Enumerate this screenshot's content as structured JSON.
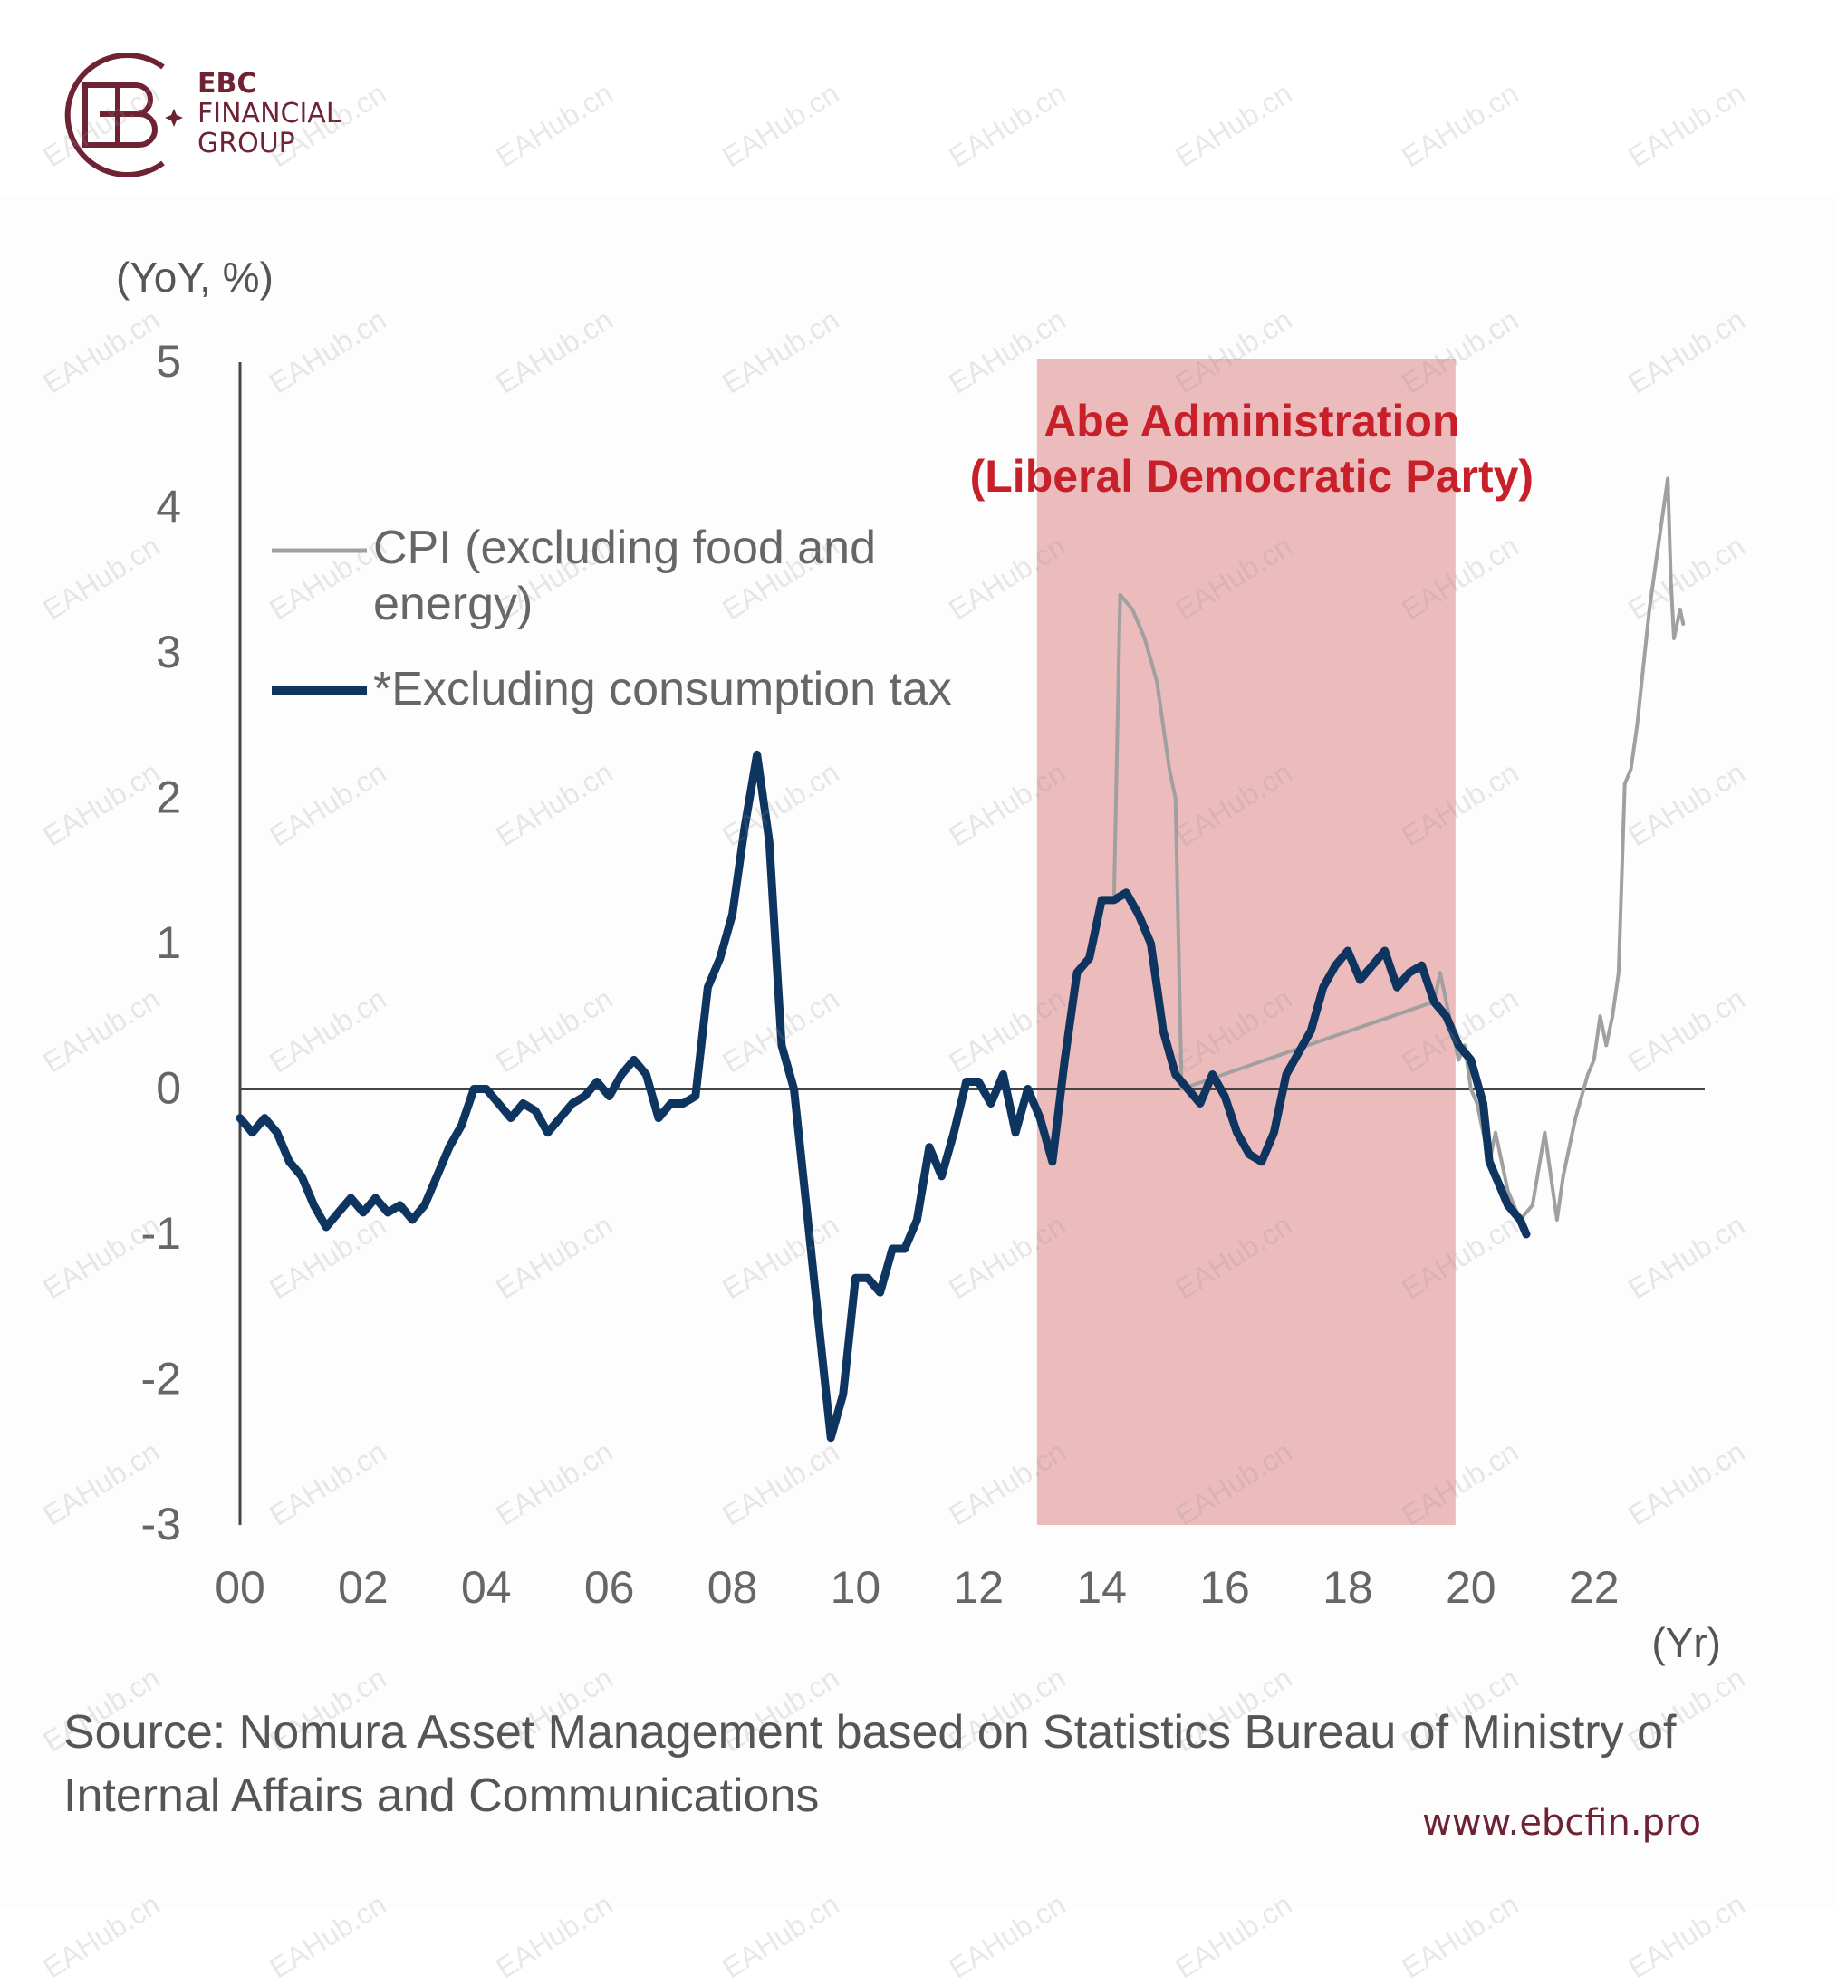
{
  "brand": {
    "name_line1": "EBC",
    "name_line2": "FINANCIAL",
    "name_line3": "GROUP",
    "color": "#6e2233",
    "url": "www.ebcfin.pro"
  },
  "watermark": "EAHub.cn",
  "source_text": "Source: Nomura Asset Management based on Statistics Bureau of Ministry of Internal Affairs and Communications",
  "chart_data": {
    "type": "line",
    "ylabel": "(YoY, %)",
    "xlabel": "(Yr)",
    "ylim": [
      -3,
      5
    ],
    "xlim": [
      2000,
      2023.8
    ],
    "yticks": [
      "5",
      "4",
      "3",
      "2",
      "1",
      "0",
      "-1",
      "-2",
      "-3"
    ],
    "yticks_values": [
      5,
      4,
      3,
      2,
      1,
      0,
      -1,
      -2,
      -3
    ],
    "xticks": [
      "00",
      "02",
      "04",
      "06",
      "08",
      "10",
      "12",
      "14",
      "16",
      "18",
      "20",
      "22"
    ],
    "xticks_values": [
      2000,
      2002,
      2004,
      2006,
      2008,
      2010,
      2012,
      2014,
      2016,
      2018,
      2020,
      2022
    ],
    "shaded_region": {
      "x_start": 2012.95,
      "x_end": 2019.75,
      "label_line1": "Abe Administration",
      "label_line2": "(Liberal Democratic Party)",
      "fill_color": "#ecbbbb",
      "label_color": "#c8202a"
    },
    "legend": [
      {
        "label_line1": "CPI (excluding food and",
        "label_line2": "energy)",
        "color": "#a0a0a0"
      },
      {
        "label_line1": "*Excluding consumption tax",
        "color": "#0e3460"
      }
    ],
    "series": [
      {
        "name": "CPI (excluding food and energy)",
        "color": "#a0a0a0",
        "points": [
          [
            2014.2,
            1.3
          ],
          [
            2014.3,
            3.4
          ],
          [
            2014.5,
            3.3
          ],
          [
            2014.7,
            3.1
          ],
          [
            2014.9,
            2.8
          ],
          [
            2015.0,
            2.5
          ],
          [
            2015.1,
            2.2
          ],
          [
            2015.2,
            2.0
          ],
          [
            2015.3,
            0.0
          ],
          [
            2019.4,
            0.6
          ],
          [
            2019.5,
            0.8
          ],
          [
            2019.6,
            0.6
          ],
          [
            2019.7,
            0.4
          ],
          [
            2019.8,
            0.2
          ],
          [
            2019.9,
            0.3
          ],
          [
            2020.0,
            0.0
          ],
          [
            2020.1,
            -0.1
          ],
          [
            2020.2,
            -0.3
          ],
          [
            2020.3,
            -0.5
          ],
          [
            2020.4,
            -0.3
          ],
          [
            2020.6,
            -0.7
          ],
          [
            2020.8,
            -0.9
          ],
          [
            2021.0,
            -0.8
          ],
          [
            2021.2,
            -0.3
          ],
          [
            2021.3,
            -0.6
          ],
          [
            2021.4,
            -0.9
          ],
          [
            2021.5,
            -0.6
          ],
          [
            2021.7,
            -0.2
          ],
          [
            2021.9,
            0.1
          ],
          [
            2022.0,
            0.2
          ],
          [
            2022.1,
            0.5
          ],
          [
            2022.2,
            0.3
          ],
          [
            2022.3,
            0.5
          ],
          [
            2022.4,
            0.8
          ],
          [
            2022.5,
            2.1
          ],
          [
            2022.6,
            2.2
          ],
          [
            2022.7,
            2.5
          ],
          [
            2022.8,
            2.9
          ],
          [
            2022.9,
            3.3
          ],
          [
            2023.0,
            3.6
          ],
          [
            2023.1,
            3.9
          ],
          [
            2023.2,
            4.2
          ],
          [
            2023.25,
            3.5
          ],
          [
            2023.3,
            3.1
          ],
          [
            2023.4,
            3.3
          ],
          [
            2023.45,
            3.2
          ]
        ]
      },
      {
        "name": "*Excluding consumption tax",
        "color": "#0e3460",
        "points": [
          [
            2000.0,
            -0.2
          ],
          [
            2000.2,
            -0.3
          ],
          [
            2000.4,
            -0.2
          ],
          [
            2000.6,
            -0.3
          ],
          [
            2000.8,
            -0.5
          ],
          [
            2001.0,
            -0.6
          ],
          [
            2001.2,
            -0.8
          ],
          [
            2001.4,
            -0.95
          ],
          [
            2001.6,
            -0.85
          ],
          [
            2001.8,
            -0.75
          ],
          [
            2002.0,
            -0.85
          ],
          [
            2002.2,
            -0.75
          ],
          [
            2002.4,
            -0.85
          ],
          [
            2002.6,
            -0.8
          ],
          [
            2002.8,
            -0.9
          ],
          [
            2003.0,
            -0.8
          ],
          [
            2003.2,
            -0.6
          ],
          [
            2003.4,
            -0.4
          ],
          [
            2003.6,
            -0.25
          ],
          [
            2003.8,
            0.0
          ],
          [
            2004.0,
            0.0
          ],
          [
            2004.2,
            -0.1
          ],
          [
            2004.4,
            -0.2
          ],
          [
            2004.6,
            -0.1
          ],
          [
            2004.8,
            -0.15
          ],
          [
            2005.0,
            -0.3
          ],
          [
            2005.2,
            -0.2
          ],
          [
            2005.4,
            -0.1
          ],
          [
            2005.6,
            -0.05
          ],
          [
            2005.8,
            0.05
          ],
          [
            2006.0,
            -0.05
          ],
          [
            2006.2,
            0.1
          ],
          [
            2006.4,
            0.2
          ],
          [
            2006.6,
            0.1
          ],
          [
            2006.8,
            -0.2
          ],
          [
            2007.0,
            -0.1
          ],
          [
            2007.2,
            -0.1
          ],
          [
            2007.4,
            -0.05
          ],
          [
            2007.6,
            0.7
          ],
          [
            2007.8,
            0.9
          ],
          [
            2008.0,
            1.2
          ],
          [
            2008.2,
            1.8
          ],
          [
            2008.4,
            2.3
          ],
          [
            2008.6,
            1.7
          ],
          [
            2008.8,
            0.3
          ],
          [
            2009.0,
            0.0
          ],
          [
            2009.2,
            -0.8
          ],
          [
            2009.4,
            -1.6
          ],
          [
            2009.6,
            -2.4
          ],
          [
            2009.8,
            -2.1
          ],
          [
            2010.0,
            -1.3
          ],
          [
            2010.2,
            -1.3
          ],
          [
            2010.4,
            -1.4
          ],
          [
            2010.6,
            -1.1
          ],
          [
            2010.8,
            -1.1
          ],
          [
            2011.0,
            -0.9
          ],
          [
            2011.2,
            -0.4
          ],
          [
            2011.4,
            -0.6
          ],
          [
            2011.6,
            -0.3
          ],
          [
            2011.8,
            0.05
          ],
          [
            2012.0,
            0.05
          ],
          [
            2012.2,
            -0.1
          ],
          [
            2012.4,
            0.1
          ],
          [
            2012.6,
            -0.3
          ],
          [
            2012.8,
            0.0
          ],
          [
            2013.0,
            -0.2
          ],
          [
            2013.2,
            -0.5
          ],
          [
            2013.4,
            0.2
          ],
          [
            2013.6,
            0.8
          ],
          [
            2013.8,
            0.9
          ],
          [
            2014.0,
            1.3
          ],
          [
            2014.2,
            1.3
          ],
          [
            2014.4,
            1.35
          ],
          [
            2014.6,
            1.2
          ],
          [
            2014.8,
            1.0
          ],
          [
            2015.0,
            0.4
          ],
          [
            2015.2,
            0.1
          ],
          [
            2015.4,
            0.0
          ],
          [
            2015.6,
            -0.1
          ],
          [
            2015.8,
            0.1
          ],
          [
            2016.0,
            -0.05
          ],
          [
            2016.2,
            -0.3
          ],
          [
            2016.4,
            -0.45
          ],
          [
            2016.6,
            -0.5
          ],
          [
            2016.8,
            -0.3
          ],
          [
            2017.0,
            0.1
          ],
          [
            2017.2,
            0.25
          ],
          [
            2017.4,
            0.4
          ],
          [
            2017.6,
            0.7
          ],
          [
            2017.8,
            0.85
          ],
          [
            2018.0,
            0.95
          ],
          [
            2018.2,
            0.75
          ],
          [
            2018.4,
            0.85
          ],
          [
            2018.6,
            0.95
          ],
          [
            2018.8,
            0.7
          ],
          [
            2019.0,
            0.8
          ],
          [
            2019.2,
            0.85
          ],
          [
            2019.4,
            0.6
          ],
          [
            2019.6,
            0.5
          ],
          [
            2019.8,
            0.3
          ],
          [
            2020.0,
            0.2
          ],
          [
            2020.2,
            -0.1
          ],
          [
            2020.3,
            -0.5
          ],
          [
            2020.5,
            -0.7
          ],
          [
            2020.6,
            -0.8
          ],
          [
            2020.8,
            -0.9
          ],
          [
            2020.9,
            -1.0
          ]
        ]
      }
    ],
    "grid": false
  }
}
